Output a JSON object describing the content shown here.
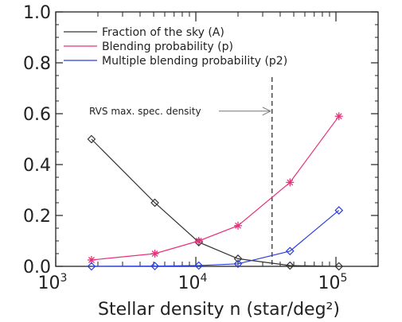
{
  "chart_data": {
    "type": "line",
    "xscale": "log",
    "xlim": [
      1000,
      200000
    ],
    "ylim": [
      0,
      1.0
    ],
    "xticks": [
      {
        "value": 1000,
        "base": "10",
        "exp": "3"
      },
      {
        "value": 10000,
        "base": "10",
        "exp": "4"
      },
      {
        "value": 100000,
        "base": "10",
        "exp": "5"
      }
    ],
    "yticks": [
      {
        "value": 0.0,
        "label": "0.0"
      },
      {
        "value": 0.2,
        "label": "0.2"
      },
      {
        "value": 0.4,
        "label": "0.4"
      },
      {
        "value": 0.6,
        "label": "0.6"
      },
      {
        "value": 0.8,
        "label": "0.8"
      },
      {
        "value": 1.0,
        "label": "1.0"
      }
    ],
    "xlabel": "Stellar density n (star/deg²)",
    "ylabel": "",
    "grid": false,
    "legend_position": "top-left",
    "series": [
      {
        "name": "Fraction of the sky (A)",
        "color": "#333333",
        "marker": "diamond",
        "x": [
          1800,
          5100,
          10500,
          20000,
          47000,
          105000
        ],
        "y": [
          0.5,
          0.25,
          0.095,
          0.03,
          0.003,
          0.0
        ]
      },
      {
        "name": "Blending probability (p)",
        "color": "#e8317a",
        "marker": "asterisk",
        "x": [
          1800,
          5100,
          10500,
          20000,
          47000,
          105000
        ],
        "y": [
          0.025,
          0.05,
          0.1,
          0.16,
          0.33,
          0.59
        ]
      },
      {
        "name": "Multiple blending probability (p2)",
        "color": "#2a3ee0",
        "marker": "diamond",
        "x": [
          1800,
          5100,
          10500,
          20000,
          47000,
          105000
        ],
        "y": [
          0.0,
          0.001,
          0.003,
          0.01,
          0.06,
          0.22
        ]
      }
    ],
    "vline": {
      "x": 35000,
      "style": "dashed",
      "color": "#333333"
    },
    "annotation": {
      "text": "RVS max. spec. density",
      "arrow_to_x": 35000,
      "y": 0.61
    }
  }
}
